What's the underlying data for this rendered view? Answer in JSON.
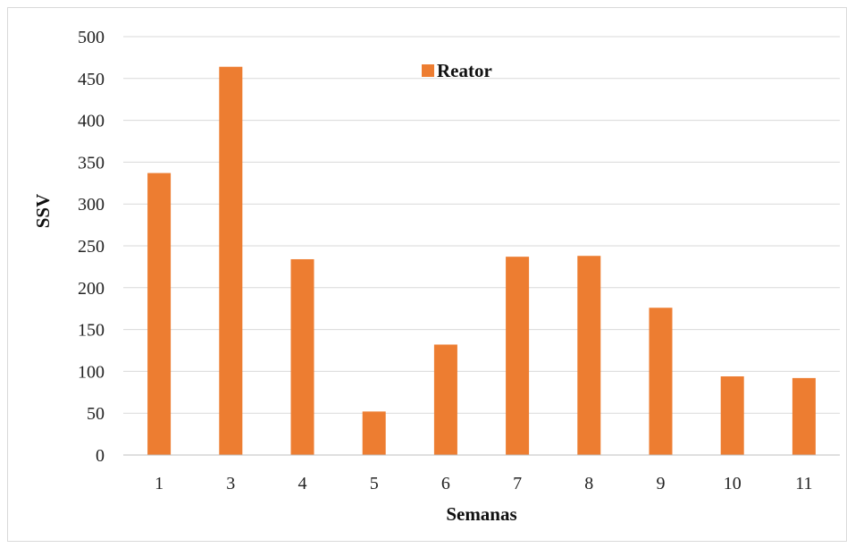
{
  "chart_data": {
    "type": "bar",
    "categories": [
      "1",
      "3",
      "4",
      "5",
      "6",
      "7",
      "8",
      "9",
      "10",
      "11"
    ],
    "series": [
      {
        "name": "Reator",
        "values": [
          337,
          464,
          234,
          52,
          132,
          237,
          238,
          176,
          94,
          92
        ],
        "color": "#ED7D31"
      }
    ],
    "xlabel": "Semanas",
    "ylabel": "SSV",
    "ylim": [
      0,
      500
    ],
    "yticks": [
      "0",
      "50",
      "100",
      "150",
      "200",
      "250",
      "300",
      "350",
      "400",
      "450",
      "500"
    ],
    "grid": true,
    "legend_position": "top-center",
    "colors": {
      "bar": "#ED7D31",
      "grid": "#d9d9d9"
    }
  }
}
